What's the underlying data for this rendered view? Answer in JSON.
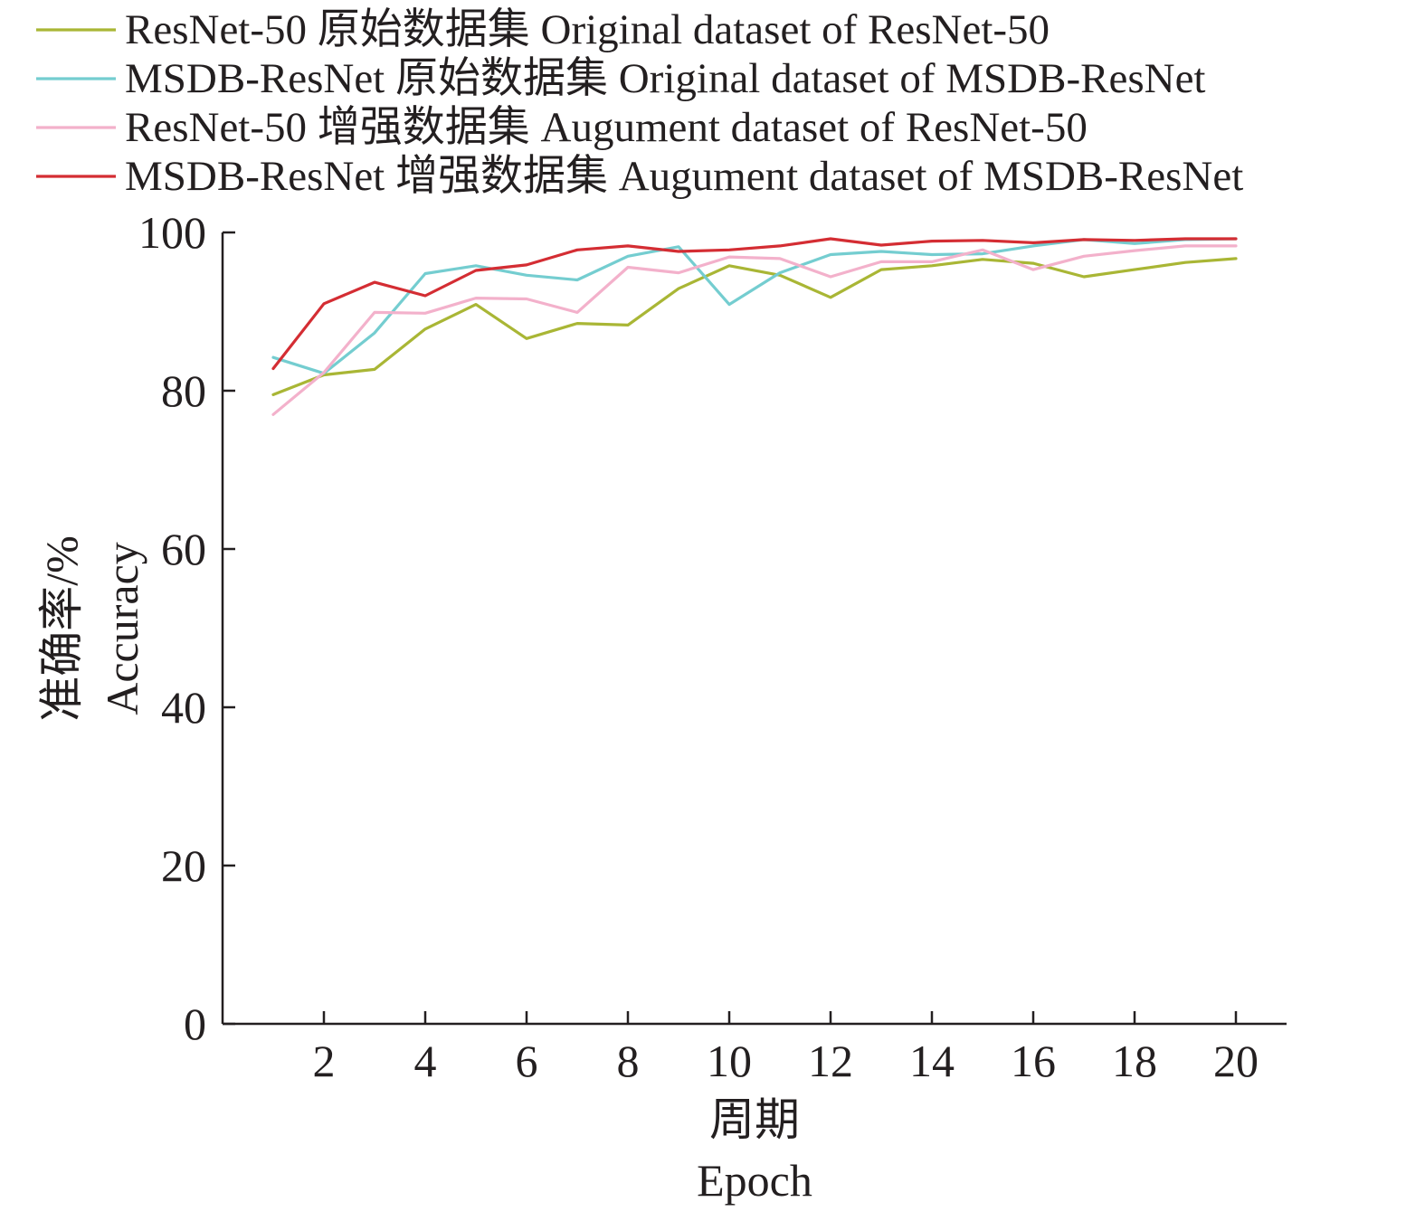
{
  "chart_data": {
    "type": "line",
    "title": "",
    "xlabel": [
      "周期",
      "Epoch"
    ],
    "ylabel": [
      "准确率/%",
      "Accuracy"
    ],
    "xlim": [
      0,
      21
    ],
    "ylim": [
      0,
      100
    ],
    "xticks": [
      2,
      4,
      6,
      8,
      10,
      12,
      14,
      16,
      18,
      20
    ],
    "yticks": [
      0,
      20,
      40,
      60,
      80,
      100
    ],
    "grid": false,
    "legend_position": "top-left",
    "x": [
      1,
      2,
      3,
      4,
      5,
      6,
      7,
      8,
      9,
      10,
      11,
      12,
      13,
      14,
      15,
      16,
      17,
      18,
      19,
      20
    ],
    "series": [
      {
        "name": "ResNet-50 原始数据集 Original dataset of ResNet-50",
        "color": "#a9b635",
        "values": [
          79.5,
          82.0,
          82.7,
          87.8,
          90.9,
          86.6,
          88.5,
          88.3,
          92.9,
          95.8,
          94.6,
          91.8,
          95.3,
          95.8,
          96.6,
          96.1,
          94.4,
          95.3,
          96.2,
          96.7
        ]
      },
      {
        "name": "MSDB-ResNet 原始数据集 Original dataset of MSDB-ResNet",
        "color": "#74cdd0",
        "values": [
          84.2,
          82.2,
          87.3,
          94.8,
          95.8,
          94.6,
          94.0,
          97.0,
          98.2,
          90.9,
          94.9,
          97.2,
          97.6,
          97.2,
          97.3,
          98.3,
          99.1,
          98.6,
          99.1,
          99.2
        ]
      },
      {
        "name": "ResNet-50 增强数据集 Augument dataset of ResNet-50",
        "color": "#f3b1cb",
        "values": [
          77.0,
          82.3,
          89.9,
          89.8,
          91.7,
          91.6,
          89.9,
          95.6,
          94.9,
          96.9,
          96.7,
          94.4,
          96.3,
          96.3,
          97.8,
          95.3,
          97.0,
          97.7,
          98.3,
          98.3
        ]
      },
      {
        "name": "MSDB-ResNet 增强数据集 Augument dataset of MSDB-ResNet",
        "color": "#d42d33",
        "values": [
          82.8,
          91.0,
          93.7,
          92.0,
          95.2,
          95.9,
          97.8,
          98.3,
          97.6,
          97.8,
          98.3,
          99.2,
          98.4,
          98.9,
          99.0,
          98.7,
          99.1,
          99.0,
          99.2,
          99.2
        ]
      }
    ]
  }
}
